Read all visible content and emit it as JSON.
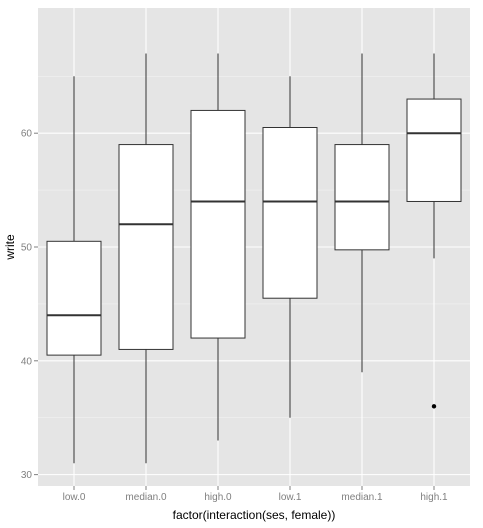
{
  "chart_data": {
    "type": "boxplot",
    "title": "",
    "xlabel": "factor(interaction(ses, female))",
    "ylabel": "write",
    "categories": [
      "low.0",
      "median.0",
      "high.0",
      "low.1",
      "median.1",
      "high.1"
    ],
    "ylim": [
      29,
      71
    ],
    "yticks": [
      30,
      40,
      50,
      60
    ],
    "boxes": [
      {
        "category": "low.0",
        "min": 31,
        "q1": 40.5,
        "median": 44,
        "q3": 50.5,
        "max": 65,
        "outliers": []
      },
      {
        "category": "median.0",
        "min": 31,
        "q1": 41,
        "median": 52,
        "q3": 59,
        "max": 67,
        "outliers": []
      },
      {
        "category": "high.0",
        "min": 33,
        "q1": 42,
        "median": 54,
        "q3": 62,
        "max": 67,
        "outliers": []
      },
      {
        "category": "low.1",
        "min": 35,
        "q1": 45.5,
        "median": 54,
        "q3": 60.5,
        "max": 65,
        "outliers": []
      },
      {
        "category": "median.1",
        "min": 39,
        "q1": 49.75,
        "median": 54,
        "q3": 59,
        "max": 67,
        "outliers": []
      },
      {
        "category": "high.1",
        "min": 49,
        "q1": 54,
        "median": 60,
        "q3": 63,
        "max": 67,
        "outliers": [
          36
        ]
      }
    ],
    "grid": true,
    "legend": "none",
    "colors": {
      "panel_background": "#e5e5e5",
      "grid_major": "#ffffff",
      "grid_minor": "#f2f2f2",
      "box_fill": "#ffffff",
      "box_line": "#333333",
      "tick_label": "#7f7f7f"
    }
  }
}
